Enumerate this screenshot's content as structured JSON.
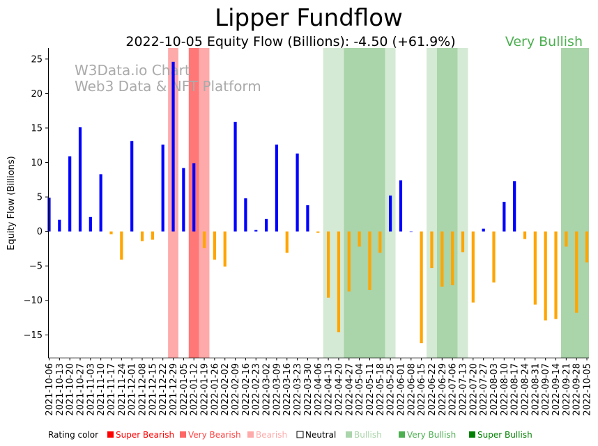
{
  "title": "Lipper Fundflow",
  "subtitle": "2022-10-05 Equity Flow (Billions): -4.50 (+61.9%)",
  "rating_text": "Very Bullish",
  "rating_color": "#4caf50",
  "watermark": [
    "W3Data.io Chart",
    "Web3 Data & NFT Platform"
  ],
  "colors": {
    "positive": "#0000ff",
    "negative": "#ffa500",
    "super_bearish": "#ff0000",
    "very_bearish": "#ff6666",
    "bearish": "#ffaaaa",
    "neutral": "#ffffff",
    "bullish": "#aad4aa",
    "very_bullish": "#4caf50",
    "super_bullish": "#008000"
  },
  "legend": {
    "prefix": "Rating color",
    "items": [
      {
        "label": "Super Bearish",
        "color": "#ff0000",
        "text_color": "#ff0000"
      },
      {
        "label": "Very Bearish",
        "color": "#ff6666",
        "text_color": "#ff4444"
      },
      {
        "label": "Bearish",
        "color": "#ffaaaa",
        "text_color": "#ffaaaa"
      },
      {
        "label": "Neutral",
        "color": "#ffffff",
        "text_color": "#000000",
        "outline": true
      },
      {
        "label": "Bullish",
        "color": "#aad4aa",
        "text_color": "#aad4aa"
      },
      {
        "label": "Very Bullish",
        "color": "#4caf50",
        "text_color": "#4caf50"
      },
      {
        "label": "Super Bullish",
        "color": "#008000",
        "text_color": "#008000"
      }
    ]
  },
  "chart_data": {
    "type": "bar",
    "title": "Lipper Fundflow",
    "ylabel": "Equity Flow (Billions)",
    "ylim": [
      -18.3,
      26.6
    ],
    "yticks": [
      -15,
      -10,
      -5,
      0,
      5,
      10,
      15,
      20,
      25
    ],
    "grid": false,
    "legend_position": "bottom",
    "categories": [
      "2021-10-06",
      "2021-10-13",
      "2021-10-20",
      "2021-10-27",
      "2021-11-03",
      "2021-11-10",
      "2021-11-17",
      "2021-11-24",
      "2021-12-01",
      "2021-12-08",
      "2021-12-15",
      "2021-12-22",
      "2021-12-29",
      "2022-01-05",
      "2022-01-12",
      "2022-01-19",
      "2022-01-26",
      "2022-02-02",
      "2022-02-09",
      "2022-02-16",
      "2022-02-23",
      "2022-03-02",
      "2022-03-09",
      "2022-03-16",
      "2022-03-23",
      "2022-03-30",
      "2022-04-06",
      "2022-04-13",
      "2022-04-20",
      "2022-04-27",
      "2022-05-04",
      "2022-05-11",
      "2022-05-18",
      "2022-05-25",
      "2022-06-01",
      "2022-06-08",
      "2022-06-15",
      "2022-06-22",
      "2022-06-29",
      "2022-07-06",
      "2022-07-13",
      "2022-07-20",
      "2022-07-27",
      "2022-08-03",
      "2022-08-10",
      "2022-08-17",
      "2022-08-24",
      "2022-08-31",
      "2022-09-07",
      "2022-09-14",
      "2022-09-21",
      "2022-09-28",
      "2022-10-05"
    ],
    "values": [
      4.9,
      1.7,
      10.9,
      15.1,
      2.1,
      8.3,
      -0.4,
      -4.1,
      13.1,
      -1.4,
      -1.2,
      12.6,
      24.6,
      9.2,
      9.9,
      -2.4,
      -4.1,
      -5.1,
      15.9,
      4.8,
      0.2,
      1.8,
      12.6,
      -3.1,
      11.3,
      3.8,
      -0.2,
      -9.6,
      -14.6,
      -8.7,
      -2.2,
      -8.5,
      -3.1,
      5.2,
      7.4,
      0.0,
      -16.2,
      -5.3,
      -8.0,
      -7.8,
      -3.0,
      -10.3,
      0.4,
      -7.4,
      4.3,
      7.3,
      -1.1,
      -10.6,
      -12.9,
      -12.7,
      -2.2,
      -11.8,
      -4.5
    ],
    "shaded_regions": [
      {
        "from": 11.5,
        "to": 12.5,
        "rating": "bearish"
      },
      {
        "from": 13.5,
        "to": 14.5,
        "rating": "very_bearish"
      },
      {
        "from": 14.5,
        "to": 15.5,
        "rating": "bearish"
      },
      {
        "from": 26.5,
        "to": 28.5,
        "rating": "bullish"
      },
      {
        "from": 28.5,
        "to": 32.5,
        "rating": "very_bullish_light"
      },
      {
        "from": 32.5,
        "to": 33.5,
        "rating": "bullish"
      },
      {
        "from": 36.5,
        "to": 37.5,
        "rating": "bullish"
      },
      {
        "from": 37.5,
        "to": 39.5,
        "rating": "very_bullish_light"
      },
      {
        "from": 39.5,
        "to": 40.5,
        "rating": "bullish"
      },
      {
        "from": 49.5,
        "to": 52.5,
        "rating": "very_bullish_light"
      }
    ]
  }
}
